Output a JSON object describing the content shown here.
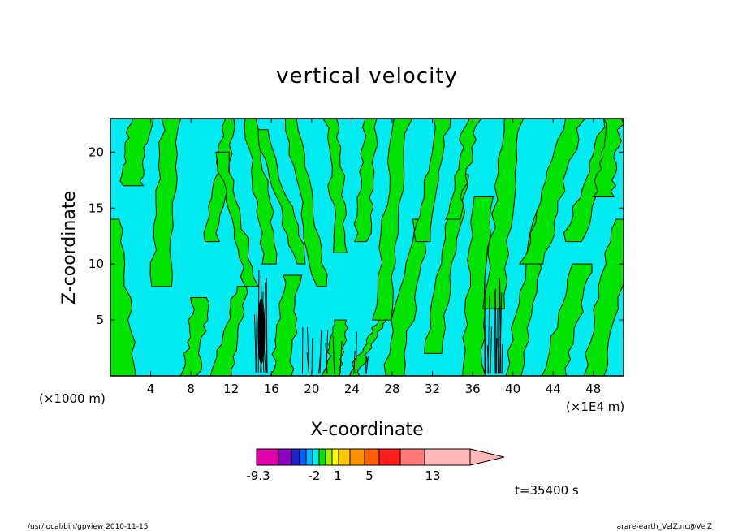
{
  "chart_data": {
    "type": "heatmap",
    "title": "vertical velocity",
    "xlabel": "X-coordinate",
    "ylabel": "Z-coordinate",
    "x_unit_label": "(×1000 m)",
    "x_scale_label": "(×1E4 m)",
    "x_ticks": [
      4,
      8,
      12,
      16,
      20,
      24,
      28,
      32,
      36,
      40,
      44,
      48
    ],
    "y_ticks": [
      5,
      10,
      15,
      20
    ],
    "xlim": [
      0,
      51
    ],
    "ylim": [
      0,
      23
    ],
    "dominant_fields": [
      "cyan (near 0, slightly negative)",
      "green (small positive)"
    ],
    "features": [
      {
        "x": 15,
        "z_range": [
          0,
          9.5
        ],
        "desc": "strong updraft/downdraft column"
      },
      {
        "x_range": [
          19,
          26
        ],
        "z_range": [
          0,
          5
        ],
        "desc": "fine-scale mixed cells"
      },
      {
        "x_range": [
          37,
          39
        ],
        "z_range": [
          0,
          9
        ],
        "desc": "narrow convective cells"
      }
    ],
    "colorbar": {
      "colors": [
        "#e000a8",
        "#8c00c0",
        "#2020c8",
        "#0060ff",
        "#00b4ff",
        "#00ecec",
        "#00e400",
        "#a8f000",
        "#ffff00",
        "#ffc800",
        "#ff9000",
        "#ff6000",
        "#ff1c1c",
        "#ff7878",
        "#ffb8b8"
      ],
      "labels": [
        "-9.3",
        "-2",
        "1",
        "5",
        "13"
      ]
    },
    "time_label": "t=35400  s"
  },
  "footer": {
    "left": "/usr/local/bin/gpview   2010-11-15",
    "right": "arare-earth_VelZ.nc@VelZ"
  }
}
